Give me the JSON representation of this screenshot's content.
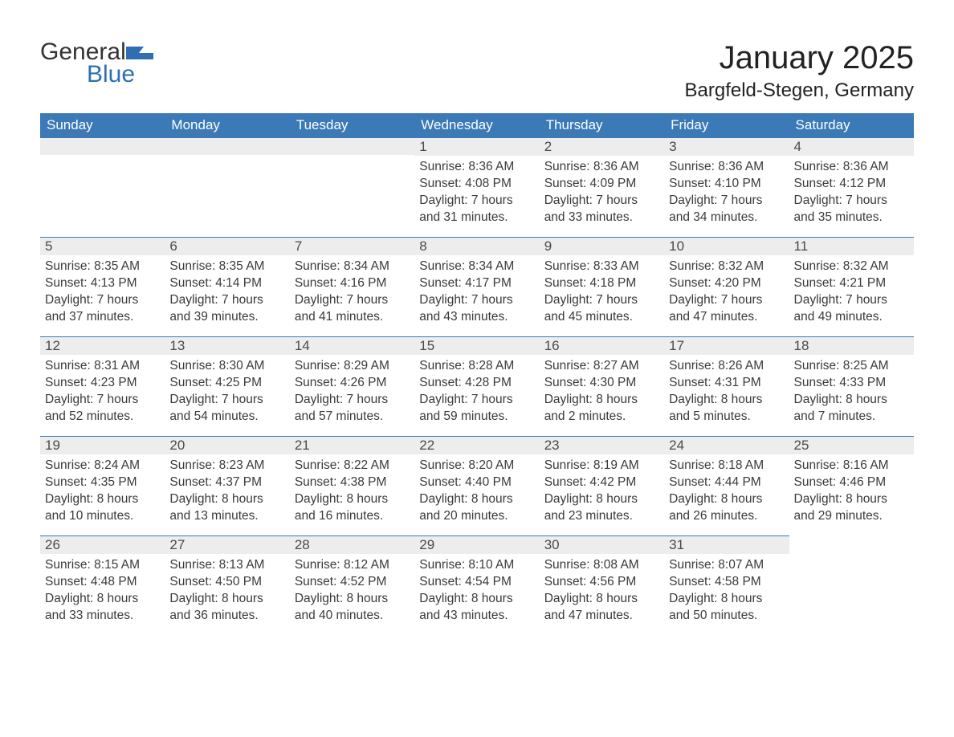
{
  "logo": {
    "general": "General",
    "blue": "Blue"
  },
  "title": "January 2025",
  "location": "Bargfeld-Stegen, Germany",
  "colors": {
    "header_bg": "#3b79b7",
    "header_text": "#ffffff",
    "daynum_bg": "#ededed",
    "divider": "#3b79b7",
    "body_text": "#3a3a3a",
    "background": "#ffffff",
    "logo_accent": "#2f6fb1"
  },
  "typography": {
    "title_fontsize": 40,
    "location_fontsize": 24,
    "header_fontsize": 17,
    "daynum_fontsize": 17,
    "body_fontsize": 15.5
  },
  "weekdays": [
    "Sunday",
    "Monday",
    "Tuesday",
    "Wednesday",
    "Thursday",
    "Friday",
    "Saturday"
  ],
  "weeks": [
    [
      null,
      null,
      null,
      {
        "n": "1",
        "sunrise": "8:36 AM",
        "sunset": "4:08 PM",
        "day_h": "7",
        "day_m": "31"
      },
      {
        "n": "2",
        "sunrise": "8:36 AM",
        "sunset": "4:09 PM",
        "day_h": "7",
        "day_m": "33"
      },
      {
        "n": "3",
        "sunrise": "8:36 AM",
        "sunset": "4:10 PM",
        "day_h": "7",
        "day_m": "34"
      },
      {
        "n": "4",
        "sunrise": "8:36 AM",
        "sunset": "4:12 PM",
        "day_h": "7",
        "day_m": "35"
      }
    ],
    [
      {
        "n": "5",
        "sunrise": "8:35 AM",
        "sunset": "4:13 PM",
        "day_h": "7",
        "day_m": "37"
      },
      {
        "n": "6",
        "sunrise": "8:35 AM",
        "sunset": "4:14 PM",
        "day_h": "7",
        "day_m": "39"
      },
      {
        "n": "7",
        "sunrise": "8:34 AM",
        "sunset": "4:16 PM",
        "day_h": "7",
        "day_m": "41"
      },
      {
        "n": "8",
        "sunrise": "8:34 AM",
        "sunset": "4:17 PM",
        "day_h": "7",
        "day_m": "43"
      },
      {
        "n": "9",
        "sunrise": "8:33 AM",
        "sunset": "4:18 PM",
        "day_h": "7",
        "day_m": "45"
      },
      {
        "n": "10",
        "sunrise": "8:32 AM",
        "sunset": "4:20 PM",
        "day_h": "7",
        "day_m": "47"
      },
      {
        "n": "11",
        "sunrise": "8:32 AM",
        "sunset": "4:21 PM",
        "day_h": "7",
        "day_m": "49"
      }
    ],
    [
      {
        "n": "12",
        "sunrise": "8:31 AM",
        "sunset": "4:23 PM",
        "day_h": "7",
        "day_m": "52"
      },
      {
        "n": "13",
        "sunrise": "8:30 AM",
        "sunset": "4:25 PM",
        "day_h": "7",
        "day_m": "54"
      },
      {
        "n": "14",
        "sunrise": "8:29 AM",
        "sunset": "4:26 PM",
        "day_h": "7",
        "day_m": "57"
      },
      {
        "n": "15",
        "sunrise": "8:28 AM",
        "sunset": "4:28 PM",
        "day_h": "7",
        "day_m": "59"
      },
      {
        "n": "16",
        "sunrise": "8:27 AM",
        "sunset": "4:30 PM",
        "day_h": "8",
        "day_m": "2"
      },
      {
        "n": "17",
        "sunrise": "8:26 AM",
        "sunset": "4:31 PM",
        "day_h": "8",
        "day_m": "5"
      },
      {
        "n": "18",
        "sunrise": "8:25 AM",
        "sunset": "4:33 PM",
        "day_h": "8",
        "day_m": "7"
      }
    ],
    [
      {
        "n": "19",
        "sunrise": "8:24 AM",
        "sunset": "4:35 PM",
        "day_h": "8",
        "day_m": "10"
      },
      {
        "n": "20",
        "sunrise": "8:23 AM",
        "sunset": "4:37 PM",
        "day_h": "8",
        "day_m": "13"
      },
      {
        "n": "21",
        "sunrise": "8:22 AM",
        "sunset": "4:38 PM",
        "day_h": "8",
        "day_m": "16"
      },
      {
        "n": "22",
        "sunrise": "8:20 AM",
        "sunset": "4:40 PM",
        "day_h": "8",
        "day_m": "20"
      },
      {
        "n": "23",
        "sunrise": "8:19 AM",
        "sunset": "4:42 PM",
        "day_h": "8",
        "day_m": "23"
      },
      {
        "n": "24",
        "sunrise": "8:18 AM",
        "sunset": "4:44 PM",
        "day_h": "8",
        "day_m": "26"
      },
      {
        "n": "25",
        "sunrise": "8:16 AM",
        "sunset": "4:46 PM",
        "day_h": "8",
        "day_m": "29"
      }
    ],
    [
      {
        "n": "26",
        "sunrise": "8:15 AM",
        "sunset": "4:48 PM",
        "day_h": "8",
        "day_m": "33"
      },
      {
        "n": "27",
        "sunrise": "8:13 AM",
        "sunset": "4:50 PM",
        "day_h": "8",
        "day_m": "36"
      },
      {
        "n": "28",
        "sunrise": "8:12 AM",
        "sunset": "4:52 PM",
        "day_h": "8",
        "day_m": "40"
      },
      {
        "n": "29",
        "sunrise": "8:10 AM",
        "sunset": "4:54 PM",
        "day_h": "8",
        "day_m": "43"
      },
      {
        "n": "30",
        "sunrise": "8:08 AM",
        "sunset": "4:56 PM",
        "day_h": "8",
        "day_m": "47"
      },
      {
        "n": "31",
        "sunrise": "8:07 AM",
        "sunset": "4:58 PM",
        "day_h": "8",
        "day_m": "50"
      },
      null
    ]
  ],
  "labels": {
    "sunrise": "Sunrise:",
    "sunset": "Sunset:",
    "daylight_prefix": "Daylight:",
    "hours_word": "hours",
    "and_word": "and",
    "minutes_word": "minutes."
  }
}
